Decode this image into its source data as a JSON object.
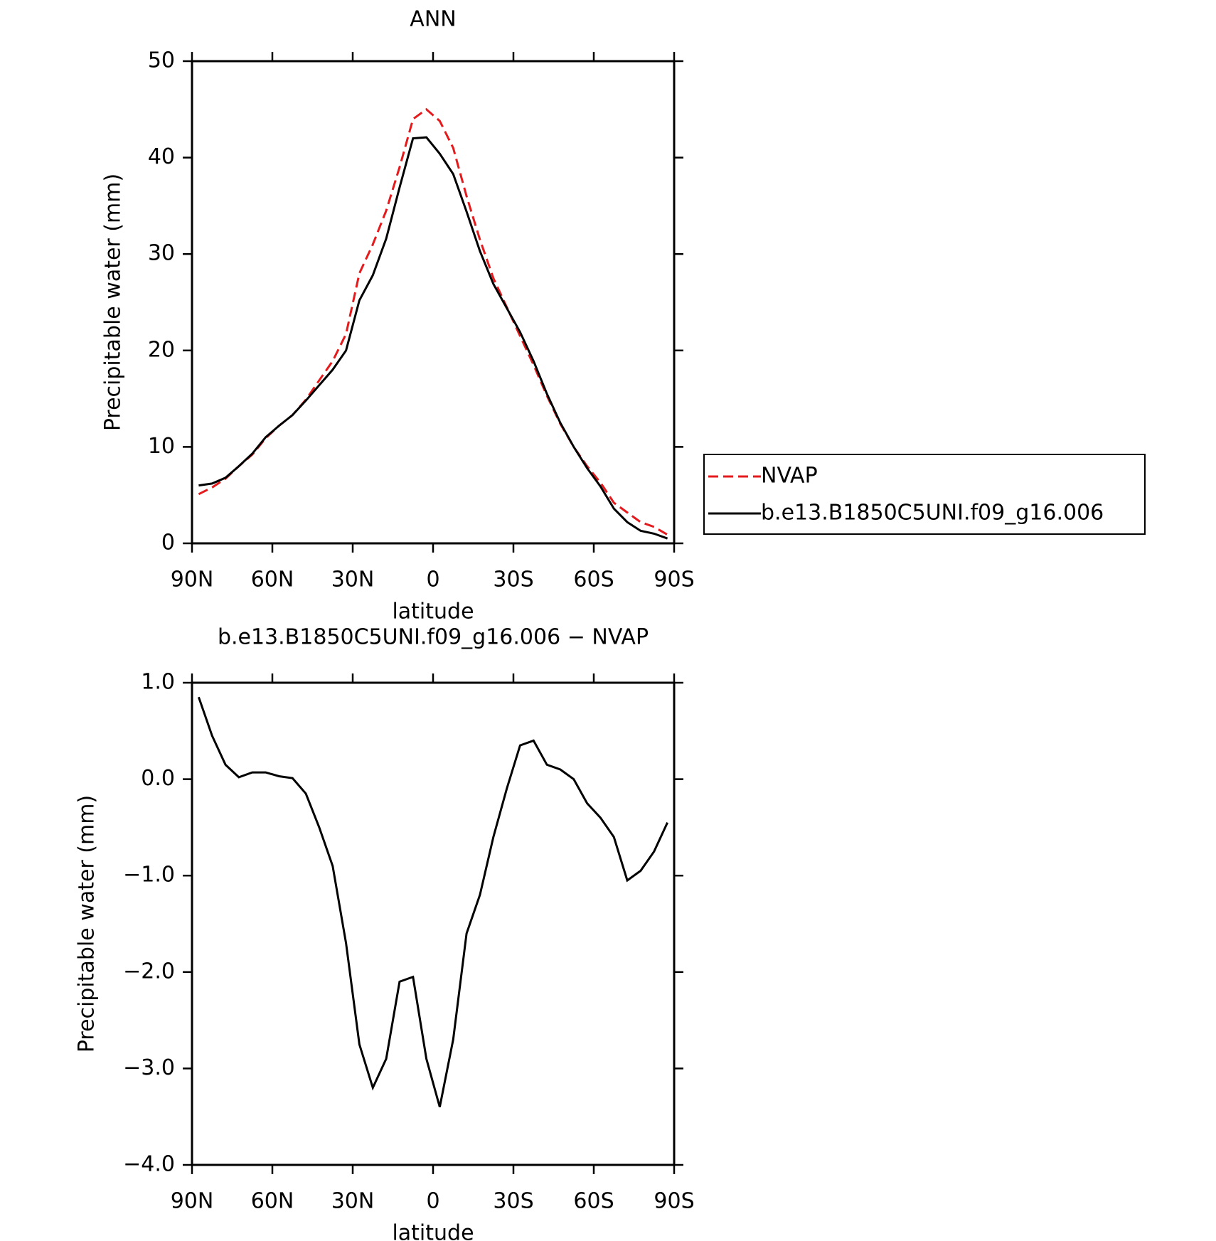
{
  "chart_data": [
    {
      "type": "line",
      "title": "ANN",
      "x_label": "latitude",
      "y_label": "Precipitable water (mm)",
      "x": [
        87.5,
        82.5,
        77.5,
        72.5,
        67.5,
        62.5,
        57.5,
        52.5,
        47.5,
        42.5,
        37.5,
        32.5,
        27.5,
        22.5,
        17.5,
        12.5,
        7.5,
        2.5,
        -2.5,
        -7.5,
        -12.5,
        -17.5,
        -22.5,
        -27.5,
        -32.5,
        -37.5,
        -42.5,
        -47.5,
        -52.5,
        -57.5,
        -62.5,
        -67.5,
        -72.5,
        -77.5,
        -82.5,
        -87.5
      ],
      "series": [
        {
          "name": "NVAP",
          "color": "#e41a1c",
          "line_style": "dashed",
          "values": [
            5.1,
            5.8,
            6.7,
            8.0,
            9.2,
            10.9,
            12.2,
            13.3,
            14.9,
            16.9,
            18.9,
            21.7,
            28.0,
            31.0,
            34.5,
            39.0,
            44.0,
            45.0,
            43.8,
            41.0,
            36.0,
            31.5,
            27.5,
            24.5,
            21.5,
            18.5,
            15.3,
            12.4,
            10.0,
            8.0,
            6.3,
            4.2,
            3.2,
            2.2,
            1.7,
            0.9
          ]
        },
        {
          "name": "b.e13.B1850C5UNI.f09_g16.006",
          "color": "#000000",
          "line_style": "solid",
          "values": [
            6.0,
            6.2,
            6.8,
            8.0,
            9.3,
            11.0,
            12.2,
            13.3,
            14.8,
            16.4,
            18.0,
            20.0,
            25.2,
            27.8,
            31.6,
            36.9,
            42.0,
            42.1,
            40.4,
            38.3,
            34.4,
            30.3,
            26.9,
            24.4,
            21.9,
            18.9,
            15.5,
            12.5,
            10.0,
            7.8,
            5.9,
            3.6,
            2.2,
            1.3,
            1.0,
            0.5
          ]
        }
      ],
      "xlim": [
        90,
        -90
      ],
      "xticks": [
        {
          "value": 90,
          "label": "90N"
        },
        {
          "value": 60,
          "label": "60N"
        },
        {
          "value": 30,
          "label": "30N"
        },
        0,
        {
          "value": -30,
          "label": "30S"
        },
        {
          "value": -60,
          "label": "60S"
        },
        {
          "value": -90,
          "label": "90S"
        }
      ],
      "ylim": [
        0,
        50
      ],
      "yticks": [
        0,
        10,
        20,
        30,
        40,
        50
      ],
      "legend": "right"
    },
    {
      "type": "line",
      "title": "b.e13.B1850C5UNI.f09_g16.006 − NVAP",
      "x_label": "latitude",
      "y_label": "Precipitable water (mm)",
      "x": [
        87.5,
        82.5,
        77.5,
        72.5,
        67.5,
        62.5,
        57.5,
        52.5,
        47.5,
        42.5,
        37.5,
        32.5,
        27.5,
        22.5,
        17.5,
        12.5,
        7.5,
        2.5,
        -2.5,
        -7.5,
        -12.5,
        -17.5,
        -22.5,
        -27.5,
        -32.5,
        -37.5,
        -42.5,
        -47.5,
        -52.5,
        -57.5,
        -62.5,
        -67.5,
        -72.5,
        -77.5,
        -82.5,
        -87.5
      ],
      "series": [
        {
          "color": "#000000",
          "line_style": "solid",
          "values": [
            0.85,
            0.45,
            0.15,
            0.02,
            0.07,
            0.07,
            0.03,
            0.01,
            -0.15,
            -0.5,
            -0.9,
            -1.7,
            -2.75,
            -3.2,
            -2.9,
            -2.1,
            -2.05,
            -2.9,
            -3.4,
            -2.7,
            -1.6,
            -1.2,
            -0.6,
            -0.1,
            0.35,
            0.4,
            0.15,
            0.1,
            0.0,
            -0.25,
            -0.4,
            -0.6,
            -1.05,
            -0.95,
            -0.75,
            -0.45
          ]
        }
      ],
      "xlim": [
        90,
        -90
      ],
      "xticks": [
        {
          "value": 90,
          "label": "90N"
        },
        {
          "value": 60,
          "label": "60N"
        },
        {
          "value": 30,
          "label": "30N"
        },
        0,
        {
          "value": -30,
          "label": "30S"
        },
        {
          "value": -60,
          "label": "60S"
        },
        {
          "value": -90,
          "label": "90S"
        }
      ],
      "ylim": [
        -4,
        1
      ],
      "yticks": [
        {
          "value": -4,
          "label": "−4.0"
        },
        {
          "value": -3,
          "label": "−3.0"
        },
        {
          "value": -2,
          "label": "−2.0"
        },
        {
          "value": -1,
          "label": "−1.0"
        },
        {
          "value": 0,
          "label": "0.0"
        },
        {
          "value": 1,
          "label": "1.0"
        }
      ]
    }
  ]
}
